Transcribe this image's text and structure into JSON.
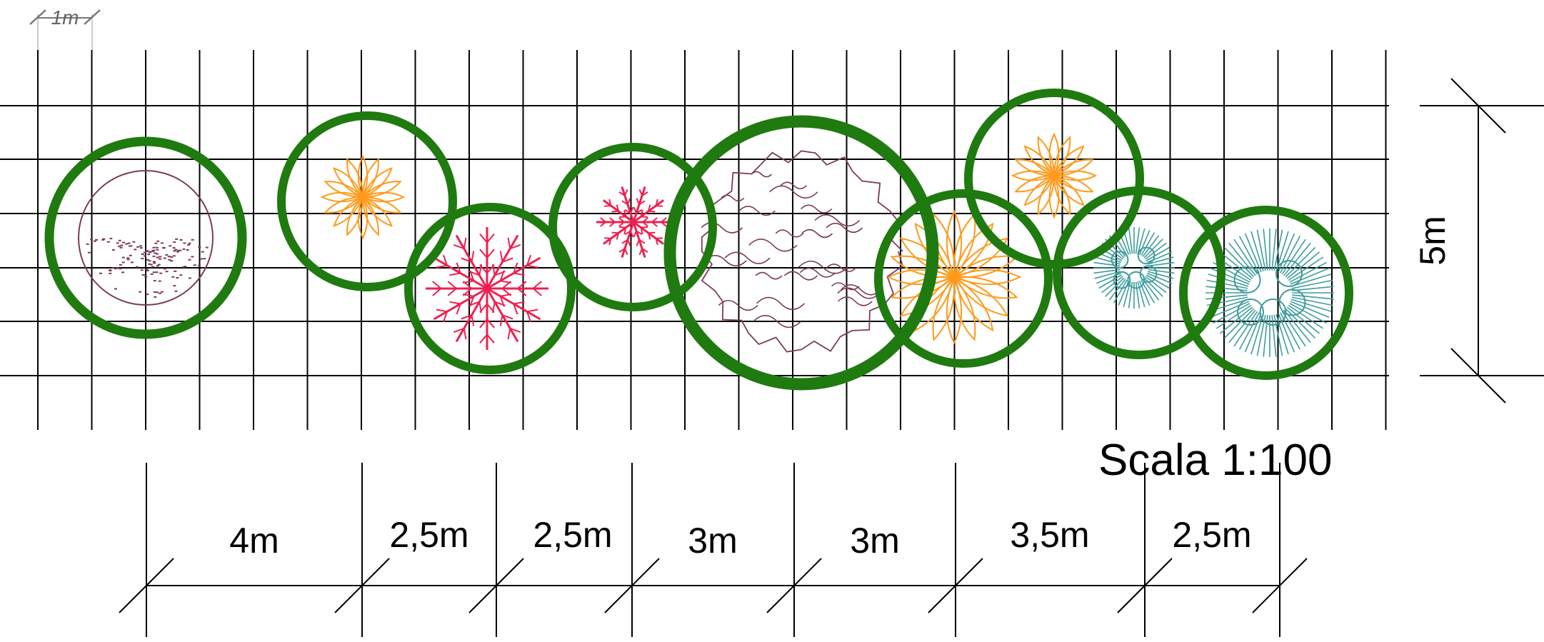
{
  "grid_unit_label": "1m",
  "height_label": "5m",
  "scale_label": "Scala 1:100",
  "spacing_labels": [
    "4m",
    "2,5m",
    "2,5m",
    "3m",
    "3m",
    "3,5m",
    "2,5m"
  ],
  "colors": {
    "canopy": "#1f7a0f",
    "grid": "#000000",
    "plant_purple": "#7a3b5c",
    "plant_orange": "#ff9a1a",
    "plant_red": "#ee2050",
    "plant_teal": "#3f9c9c"
  },
  "plants": [
    {
      "name": "plant-1",
      "kind": "round-shrub",
      "color": "plant_purple"
    },
    {
      "name": "plant-2",
      "kind": "leafy-small",
      "color": "plant_orange"
    },
    {
      "name": "plant-3",
      "kind": "spiky-large",
      "color": "plant_red"
    },
    {
      "name": "plant-4",
      "kind": "spiky-small",
      "color": "plant_red"
    },
    {
      "name": "plant-5",
      "kind": "cloud-tree",
      "color": "plant_purple"
    },
    {
      "name": "plant-6",
      "kind": "leafy-large",
      "color": "plant_orange"
    },
    {
      "name": "plant-7",
      "kind": "leafy-small",
      "color": "plant_orange"
    },
    {
      "name": "plant-8",
      "kind": "needle-small",
      "color": "plant_teal"
    },
    {
      "name": "plant-9",
      "kind": "needle-large",
      "color": "plant_teal"
    }
  ]
}
